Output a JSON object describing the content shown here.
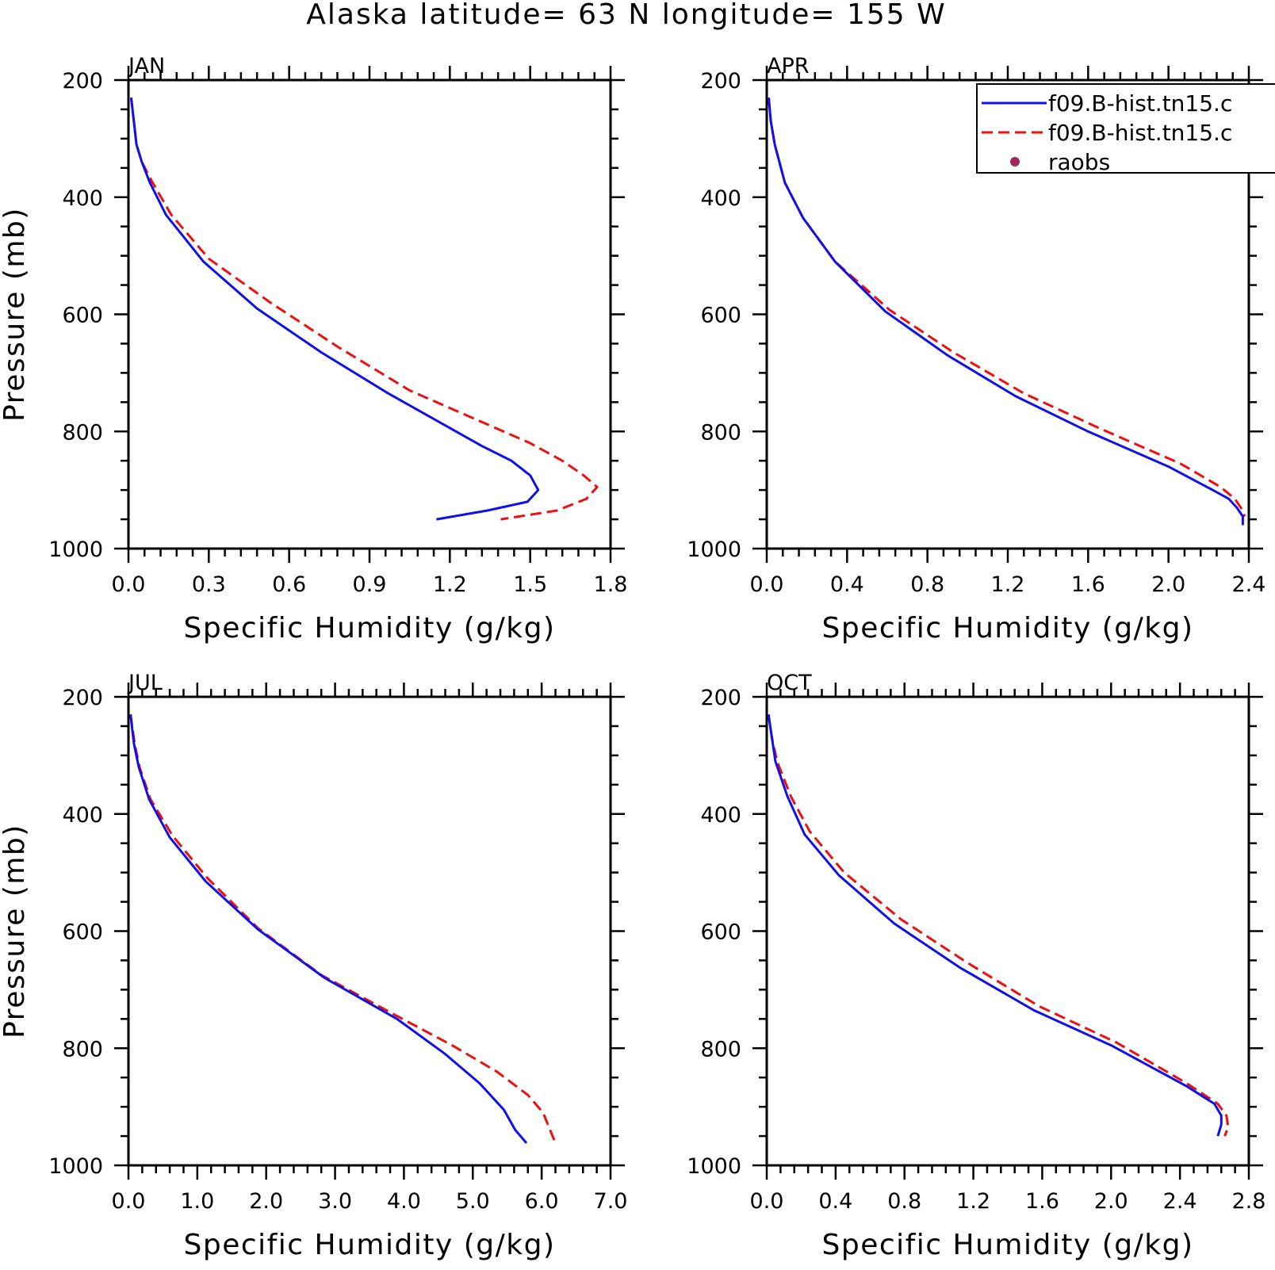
{
  "title": "Alaska  latitude= 63 N longitude= 155 W",
  "colors": {
    "model1": "#1010ee",
    "model2": "#ee1010",
    "raobs": "#a02860"
  },
  "legend": {
    "entries": [
      {
        "label": "f09.B-hist.tn15.c",
        "style": "solid",
        "color": "#1010ee"
      },
      {
        "label": "f09.B-hist.tn15.c",
        "style": "dashed",
        "color": "#ee1010"
      },
      {
        "label": "raobs",
        "style": "marker",
        "color": "#a02860"
      }
    ]
  },
  "chart_data": [
    {
      "type": "line",
      "panel": "JAN",
      "xlabel": "Specific Humidity (g/kg)",
      "ylabel": "Pressure (mb)",
      "xlim": [
        0,
        1.8
      ],
      "ylim": [
        1000,
        200
      ],
      "xticks": [
        "0.0",
        "0.3",
        "0.6",
        "0.9",
        "1.2",
        "1.5",
        "1.8"
      ],
      "yticks": [
        "200",
        "400",
        "600",
        "800",
        "1000"
      ],
      "series": [
        {
          "name": "f09.B-hist.tn15.c",
          "style": "solid",
          "x": [
            0.01,
            0.02,
            0.03,
            0.05,
            0.08,
            0.14,
            0.28,
            0.48,
            0.72,
            0.97,
            1.32,
            1.43,
            1.5,
            1.53,
            1.49,
            1.34,
            1.15
          ],
          "y": [
            230,
            270,
            310,
            340,
            375,
            430,
            510,
            590,
            665,
            735,
            825,
            850,
            875,
            900,
            920,
            935,
            950
          ]
        },
        {
          "name": "f09.B-hist.tn15.c",
          "style": "dashed",
          "x": [
            0.01,
            0.02,
            0.03,
            0.05,
            0.09,
            0.16,
            0.3,
            0.53,
            0.78,
            1.05,
            1.5,
            1.62,
            1.7,
            1.75,
            1.71,
            1.6,
            1.39
          ],
          "y": [
            230,
            270,
            310,
            340,
            375,
            430,
            505,
            580,
            655,
            730,
            820,
            850,
            875,
            895,
            915,
            935,
            950
          ]
        }
      ]
    },
    {
      "type": "line",
      "panel": "APR",
      "xlabel": "Specific Humidity (g/kg)",
      "ylabel": "",
      "xlim": [
        0,
        2.4
      ],
      "ylim": [
        1000,
        200
      ],
      "xticks": [
        "0.0",
        "0.4",
        "0.8",
        "1.2",
        "1.6",
        "2.0",
        "2.4"
      ],
      "yticks": [
        "200",
        "400",
        "600",
        "800",
        "1000"
      ],
      "series": [
        {
          "name": "f09.B-hist.tn15.c",
          "style": "solid",
          "x": [
            0.01,
            0.02,
            0.04,
            0.09,
            0.18,
            0.34,
            0.59,
            0.9,
            1.24,
            1.6,
            2.0,
            2.22,
            2.3,
            2.34,
            2.37,
            2.37
          ],
          "y": [
            230,
            270,
            310,
            375,
            435,
            510,
            595,
            670,
            740,
            800,
            860,
            900,
            915,
            930,
            945,
            960
          ]
        },
        {
          "name": "f09.B-hist.tn15.c",
          "style": "dashed",
          "x": [
            0.01,
            0.02,
            0.04,
            0.09,
            0.18,
            0.34,
            0.61,
            0.93,
            1.28,
            1.66,
            2.06,
            2.26,
            2.33,
            2.36,
            2.38
          ],
          "y": [
            230,
            270,
            310,
            375,
            435,
            510,
            592,
            665,
            735,
            795,
            855,
            895,
            915,
            930,
            945
          ]
        }
      ]
    },
    {
      "type": "line",
      "panel": "JUL",
      "xlabel": "Specific Humidity (g/kg)",
      "ylabel": "Pressure (mb)",
      "xlim": [
        0,
        7.0
      ],
      "ylim": [
        1000,
        200
      ],
      "xticks": [
        "0.0",
        "1.0",
        "2.0",
        "3.0",
        "4.0",
        "5.0",
        "6.0",
        "7.0"
      ],
      "yticks": [
        "200",
        "400",
        "600",
        "800",
        "1000"
      ],
      "series": [
        {
          "name": "f09.B-hist.tn15.c",
          "style": "solid",
          "x": [
            0.03,
            0.08,
            0.15,
            0.3,
            0.6,
            1.12,
            1.88,
            2.85,
            3.9,
            4.6,
            5.1,
            5.45,
            5.62,
            5.78
          ],
          "y": [
            230,
            280,
            320,
            375,
            440,
            515,
            597,
            680,
            750,
            810,
            860,
            905,
            940,
            962
          ]
        },
        {
          "name": "f09.B-hist.tn15.c",
          "style": "dashed",
          "x": [
            0.03,
            0.09,
            0.16,
            0.32,
            0.64,
            1.15,
            1.88,
            2.8,
            3.9,
            4.7,
            5.35,
            5.8,
            6.02,
            6.2
          ],
          "y": [
            230,
            280,
            320,
            375,
            437,
            510,
            595,
            675,
            745,
            795,
            840,
            880,
            910,
            962
          ]
        }
      ]
    },
    {
      "type": "line",
      "panel": "OCT",
      "xlabel": "Specific Humidity (g/kg)",
      "ylabel": "",
      "xlim": [
        0,
        2.8
      ],
      "ylim": [
        1000,
        200
      ],
      "xticks": [
        "0.0",
        "0.4",
        "0.8",
        "1.2",
        "1.6",
        "2.0",
        "2.4",
        "2.8"
      ],
      "yticks": [
        "200",
        "400",
        "600",
        "800",
        "1000"
      ],
      "series": [
        {
          "name": "f09.B-hist.tn15.c",
          "style": "solid",
          "x": [
            0.01,
            0.03,
            0.05,
            0.12,
            0.22,
            0.42,
            0.74,
            1.12,
            1.55,
            2.0,
            2.44,
            2.6,
            2.64,
            2.64,
            2.62
          ],
          "y": [
            230,
            270,
            310,
            370,
            435,
            505,
            587,
            662,
            735,
            795,
            865,
            895,
            915,
            930,
            950
          ]
        },
        {
          "name": "f09.B-hist.tn15.c",
          "style": "dashed",
          "x": [
            0.01,
            0.03,
            0.06,
            0.14,
            0.25,
            0.45,
            0.78,
            1.17,
            1.58,
            2.03,
            2.44,
            2.62,
            2.67,
            2.68,
            2.66
          ],
          "y": [
            230,
            270,
            310,
            370,
            430,
            500,
            580,
            655,
            728,
            790,
            860,
            895,
            915,
            935,
            950
          ]
        }
      ]
    }
  ]
}
